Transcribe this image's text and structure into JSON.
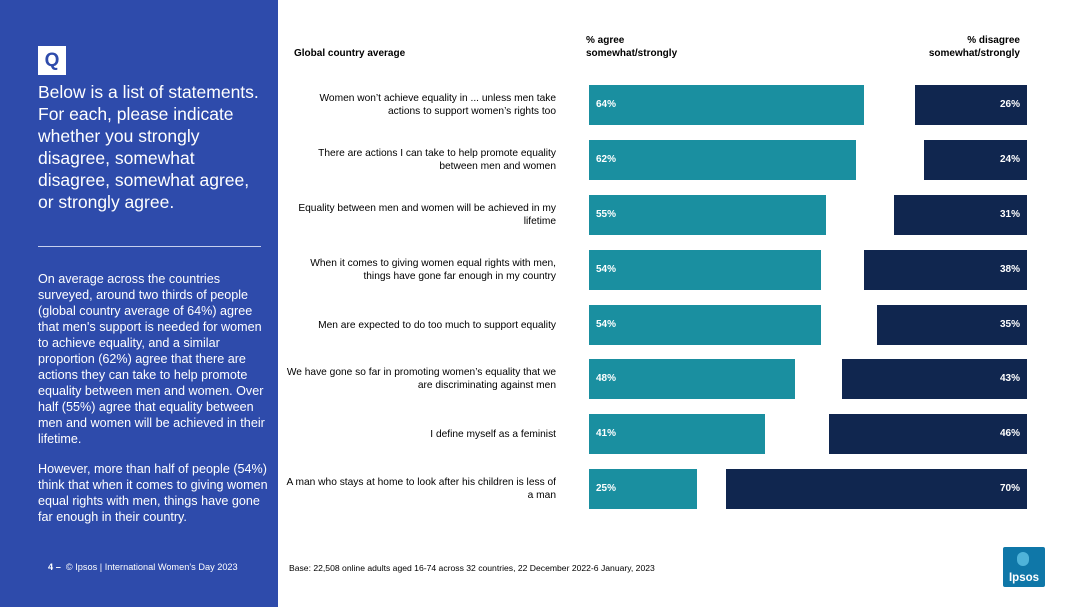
{
  "question": {
    "badge": "Q",
    "text": "Below is a list of statements. For each, please indicate whether you strongly disagree, somewhat disagree, somewhat agree, or strongly agree.",
    "summary_1": "On average across the countries surveyed, around two thirds of people (global country average of 64%) agree that men's support is needed for women to achieve equality, and a similar proportion (62%) agree that there are actions they can take to help promote equality between men and women. Over half (55%) agree that equality between men and women will be achieved in their lifetime.",
    "summary_2": "However, more than half of people (54%) think that when it comes to giving women equal rights with men, things have gone far enough in their country."
  },
  "footer": {
    "page_number": "4",
    "separator": "–",
    "text": "© Ipsos | International Women’s Day 2023",
    "base": "Base: 22,508 online adults aged 16-74 across 32 countries, 22 December 2022-6 January, 2023"
  },
  "logo": {
    "text": "Ipsos"
  },
  "colors": {
    "panel": "#2e4bab",
    "agree": "#1a8fa0",
    "disagree": "#10264f"
  },
  "chart_data": {
    "type": "bar",
    "orientation": "horizontal-diverging",
    "title": "Global country average",
    "series": [
      {
        "name": "% agree somewhat/strongly",
        "values": [
          64,
          62,
          55,
          54,
          54,
          48,
          41,
          25
        ]
      },
      {
        "name": "% disagree somewhat/strongly",
        "values": [
          26,
          24,
          31,
          38,
          35,
          43,
          46,
          70
        ]
      }
    ],
    "headers": {
      "country": "Global country average",
      "agree_1": "% agree",
      "agree_2": "somewhat/strongly",
      "disagree_1": "% disagree",
      "disagree_2": "somewhat/strongly"
    },
    "rows": [
      {
        "statement": "Women won’t achieve equality in ... unless men take actions to support women’s rights too",
        "agree": 64,
        "disagree": 26,
        "agree_label": "64%",
        "disagree_label": "26%"
      },
      {
        "statement": "There are actions I can take to help promote equality between men and women",
        "agree": 62,
        "disagree": 24,
        "agree_label": "62%",
        "disagree_label": "24%"
      },
      {
        "statement": "Equality between men and women will be achieved in my lifetime",
        "agree": 55,
        "disagree": 31,
        "agree_label": "55%",
        "disagree_label": "31%"
      },
      {
        "statement": "When it comes to giving women equal rights with men, things have gone far enough in my country",
        "agree": 54,
        "disagree": 38,
        "agree_label": "54%",
        "disagree_label": "38%"
      },
      {
        "statement": "Men are expected to do too much to support equality",
        "agree": 54,
        "disagree": 35,
        "agree_label": "54%",
        "disagree_label": "35%"
      },
      {
        "statement": "We have gone so far in promoting women’s equality that we are discriminating against men",
        "agree": 48,
        "disagree": 43,
        "agree_label": "48%",
        "disagree_label": "43%"
      },
      {
        "statement": "I define myself as a feminist",
        "agree": 41,
        "disagree": 46,
        "agree_label": "41%",
        "disagree_label": "46%"
      },
      {
        "statement": "A man who stays at home to look after his children is less of a man",
        "agree": 25,
        "disagree": 70,
        "agree_label": "25%",
        "disagree_label": "70%"
      }
    ],
    "xlim": [
      0,
      100
    ]
  }
}
